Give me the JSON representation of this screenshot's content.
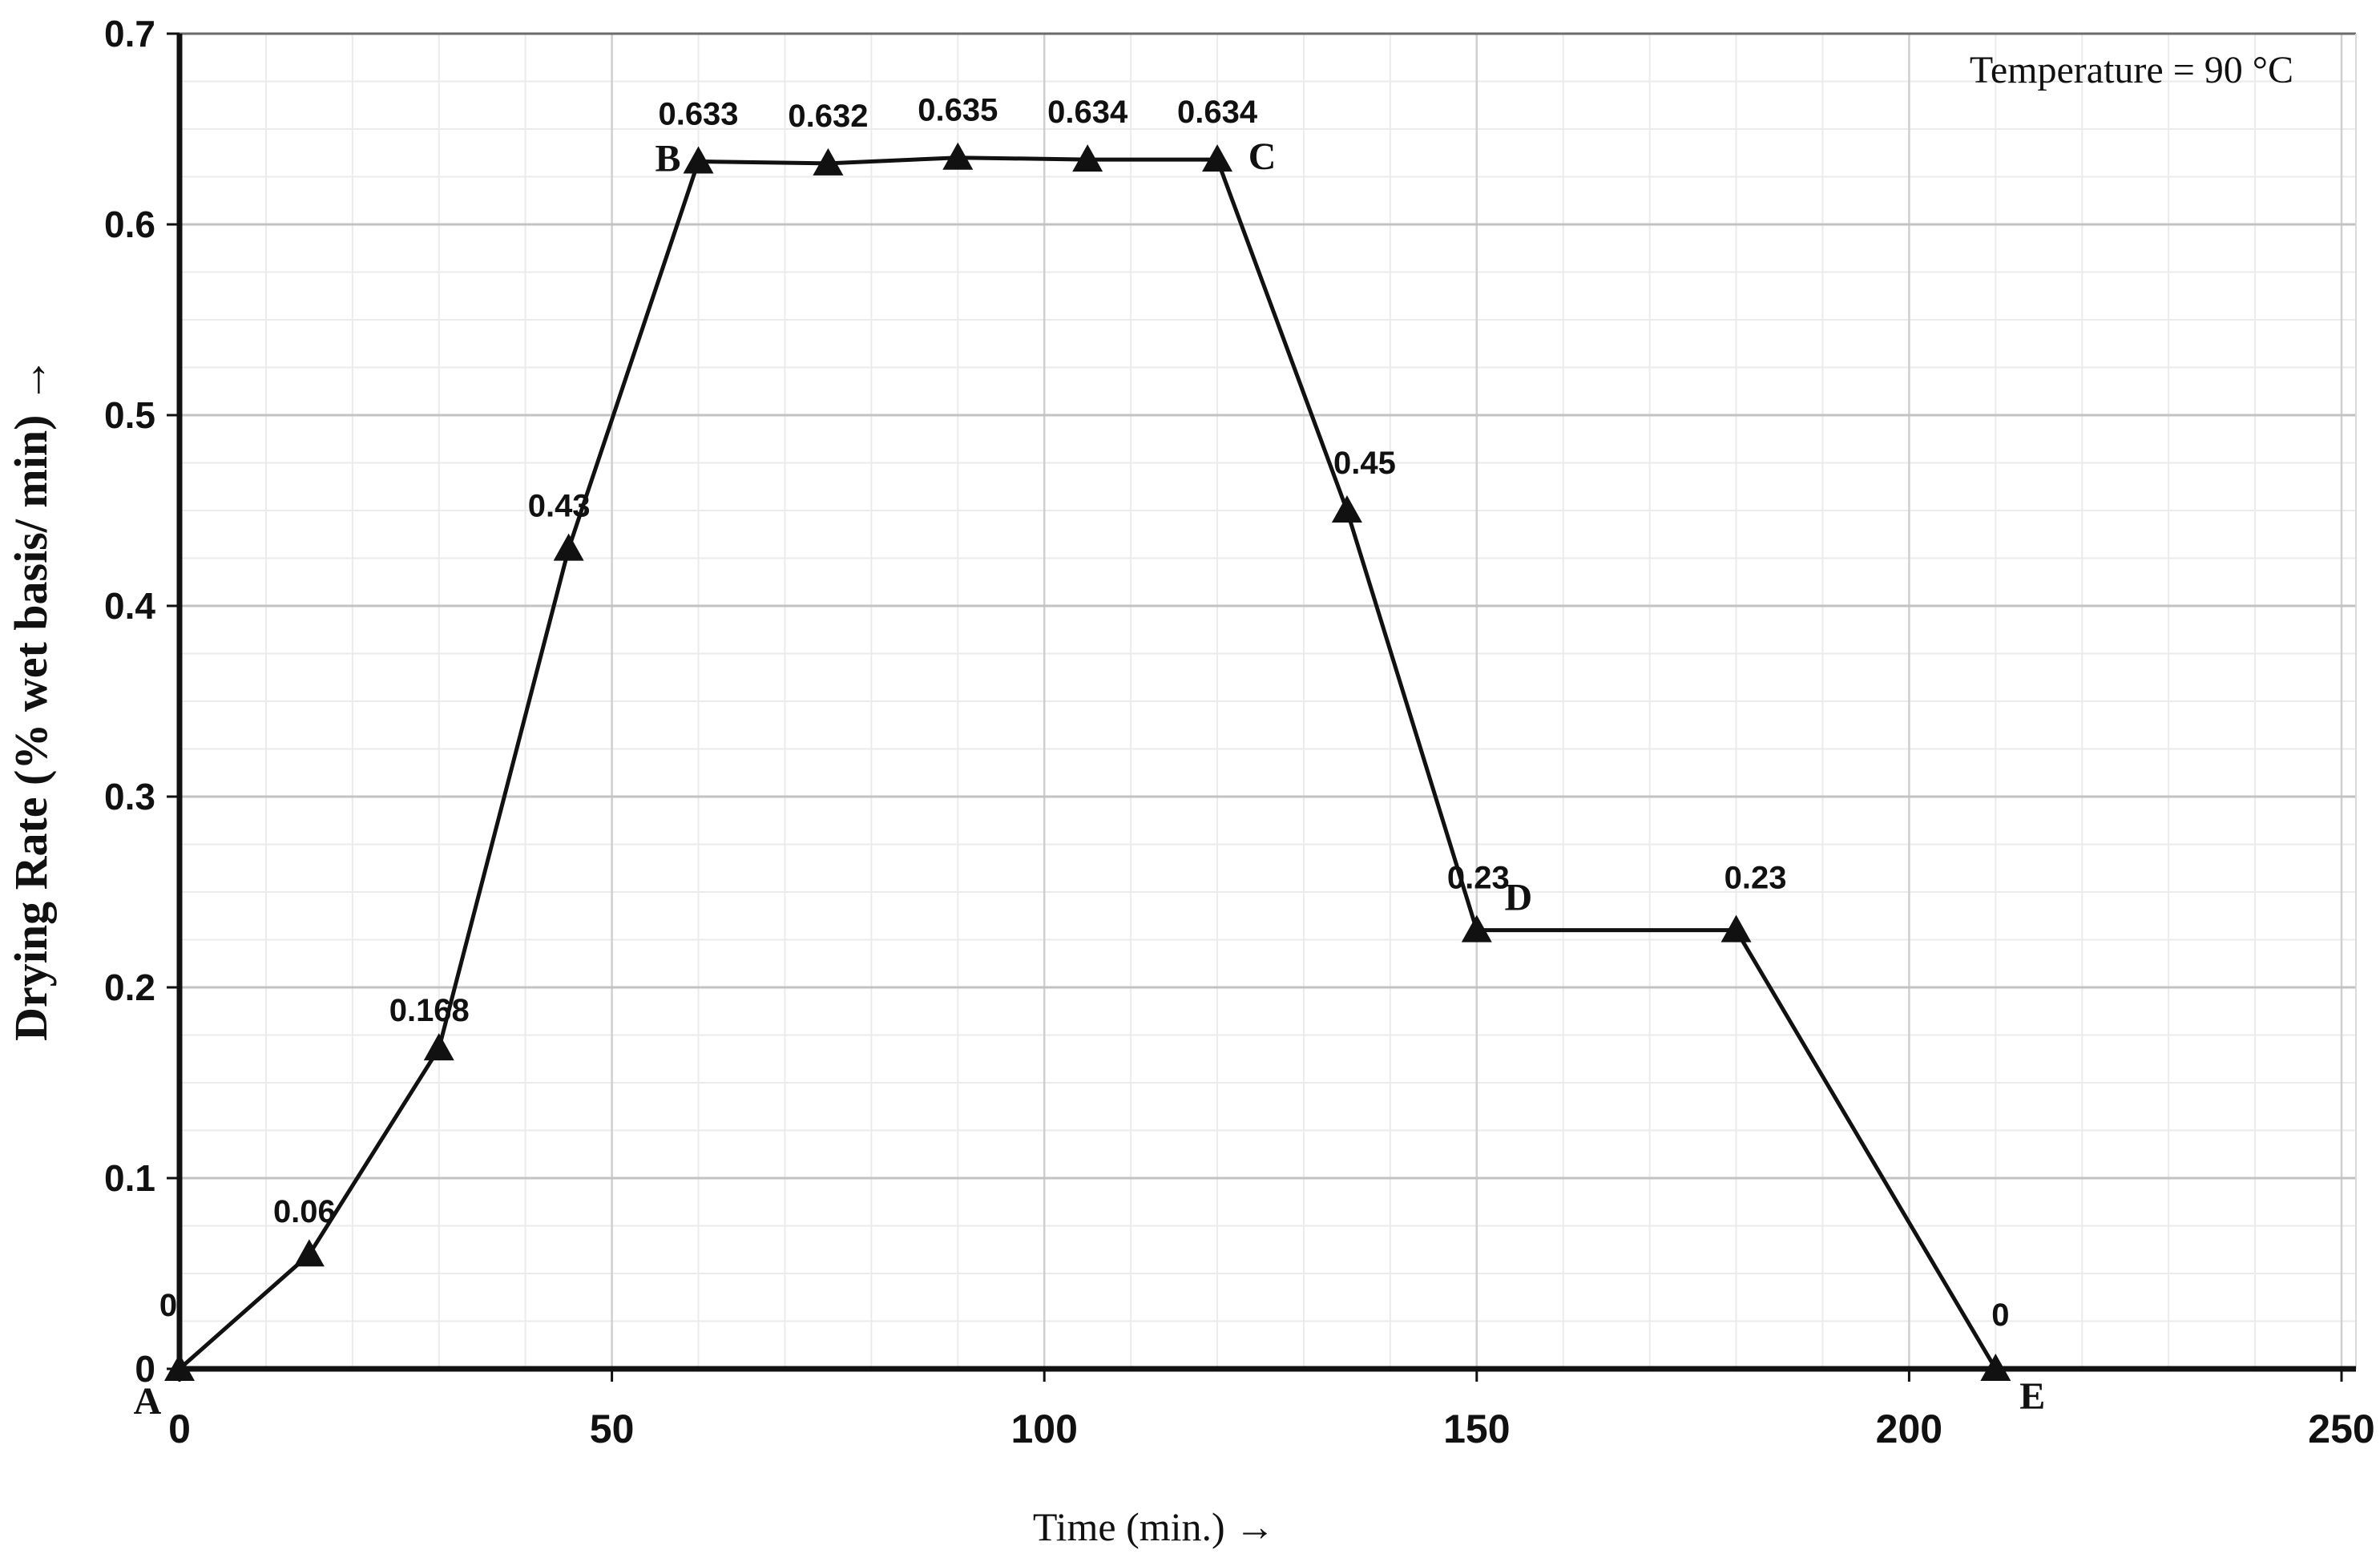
{
  "chart_data": {
    "type": "line",
    "title": "",
    "annotation": "Temperature = 90 °C",
    "xlabel": "Time (min.) →",
    "ylabel": "Drying Rate (% wet basis/ min) →",
    "xlim": [
      0,
      250
    ],
    "ylim": [
      0,
      0.7
    ],
    "x_ticks": [
      0,
      50,
      100,
      150,
      200,
      250
    ],
    "y_ticks": [
      0,
      0.1,
      0.2,
      0.3,
      0.4,
      0.5,
      0.6,
      0.7
    ],
    "grid": {
      "on": true,
      "minor_x_step_min": 10,
      "minor_y_step": 0.025,
      "major_x_step_min": 50,
      "major_y_step": 0.1,
      "legend": "none"
    },
    "series": [
      {
        "name": "drying-rate-90C",
        "marker": "triangle-up",
        "x": [
          0,
          15,
          30,
          45,
          60,
          75,
          90,
          105,
          120,
          135,
          150,
          180,
          210
        ],
        "y": [
          0,
          0.06,
          0.168,
          0.43,
          0.633,
          0.632,
          0.635,
          0.634,
          0.634,
          0.45,
          0.23,
          0.23,
          0
        ],
        "point_labels": [
          "0",
          "0.06",
          "0.168",
          "0.43",
          "0.633",
          "0.632",
          "0.635",
          "0.634",
          "0.634",
          "0.45",
          "0.23",
          "0.23",
          "0"
        ]
      }
    ],
    "point_letters": [
      {
        "text": "A",
        "x": 0,
        "y": 0
      },
      {
        "text": "B",
        "x": 60,
        "y": 0.633
      },
      {
        "text": "C",
        "x": 120,
        "y": 0.634
      },
      {
        "text": "D",
        "x": 150,
        "y": 0.23
      },
      {
        "text": "E",
        "x": 210,
        "y": 0
      }
    ]
  },
  "colors": {
    "line": "#111111",
    "marker": "#111111",
    "grid_minor": "#ebebeb",
    "grid_major_h": "#c3c3c3",
    "grid_major_v": "#cfcfcf",
    "border_top": "#6b6b6b",
    "border_right": "#d9d9d9",
    "axis": "#111111",
    "text": "#111111"
  }
}
